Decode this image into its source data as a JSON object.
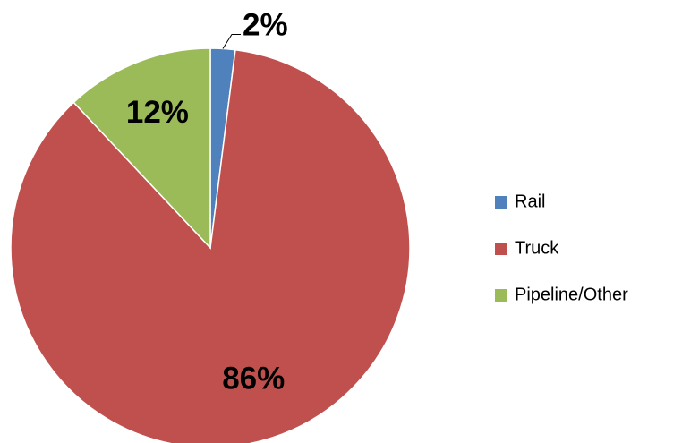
{
  "chart_data": {
    "type": "pie",
    "categories": [
      "Rail",
      "Truck",
      "Pipeline/Other"
    ],
    "values": [
      2,
      86,
      12
    ],
    "value_labels": [
      "2%",
      "86%",
      "12%"
    ],
    "colors": [
      "#4f81bd",
      "#c0504d",
      "#9bbb59"
    ],
    "legend": "right"
  }
}
